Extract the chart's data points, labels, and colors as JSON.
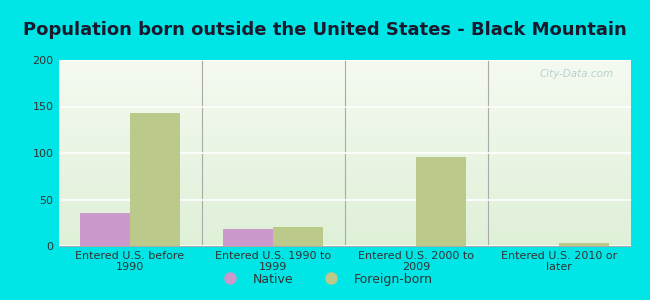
{
  "title": "Population born outside the United States - Black Mountain",
  "categories": [
    "Entered U.S. before\n1990",
    "Entered U.S. 1990 to\n1999",
    "Entered U.S. 2000 to\n2009",
    "Entered U.S. 2010 or\nlater"
  ],
  "native_values": [
    35,
    18,
    0,
    0
  ],
  "foreign_values": [
    143,
    20,
    96,
    3
  ],
  "native_color": "#cc99cc",
  "foreign_color": "#bbc98a",
  "ylim": [
    0,
    200
  ],
  "yticks": [
    0,
    50,
    100,
    150,
    200
  ],
  "background_outer": "#00e5e5",
  "background_inner": "#e8f5e8",
  "bar_width": 0.35,
  "title_fontsize": 13,
  "tick_fontsize": 8,
  "legend_fontsize": 9,
  "watermark": "City-Data.com"
}
